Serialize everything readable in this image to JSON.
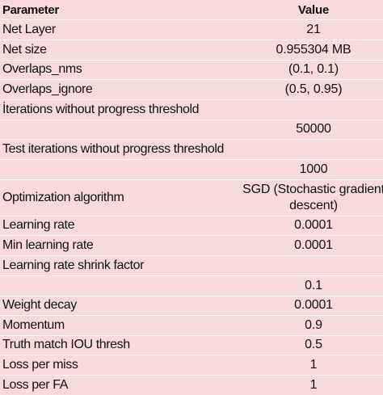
{
  "table": {
    "header": {
      "parameter": "Parameter",
      "value": "Value"
    },
    "rows": [
      {
        "parameter": "Net Layer",
        "value": "21"
      },
      {
        "parameter": "Net size",
        "value": "0.955304 MB"
      },
      {
        "parameter": "Overlaps_nms",
        "value": "(0.1, 0.1)"
      },
      {
        "parameter": "Overlaps_ignore",
        "value": "(0.5, 0.95)"
      },
      {
        "parameter": "İterations without progress threshold",
        "value": ""
      },
      {
        "parameter": "",
        "value": "50000"
      },
      {
        "parameter": "Test iterations without progress threshold",
        "value": ""
      },
      {
        "parameter": "",
        "value": "1000"
      },
      {
        "parameter": "Optimization algorithm",
        "value": "SGD (Stochastic gradient descent)"
      },
      {
        "parameter": "Learning rate",
        "value": "0.0001"
      },
      {
        "parameter": "Min learning rate",
        "value": "0.0001"
      },
      {
        "parameter": "Learning rate shrink factor",
        "value": ""
      },
      {
        "parameter": "",
        "value": "0.1"
      },
      {
        "parameter": "Weight decay",
        "value": "0.0001"
      },
      {
        "parameter": "Momentum",
        "value": "0.9"
      },
      {
        "parameter": "Truth match IOU thresh",
        "value": "0.5"
      },
      {
        "parameter": "Loss per miss",
        "value": "1"
      },
      {
        "parameter": "Loss per FA",
        "value": "1"
      }
    ]
  }
}
